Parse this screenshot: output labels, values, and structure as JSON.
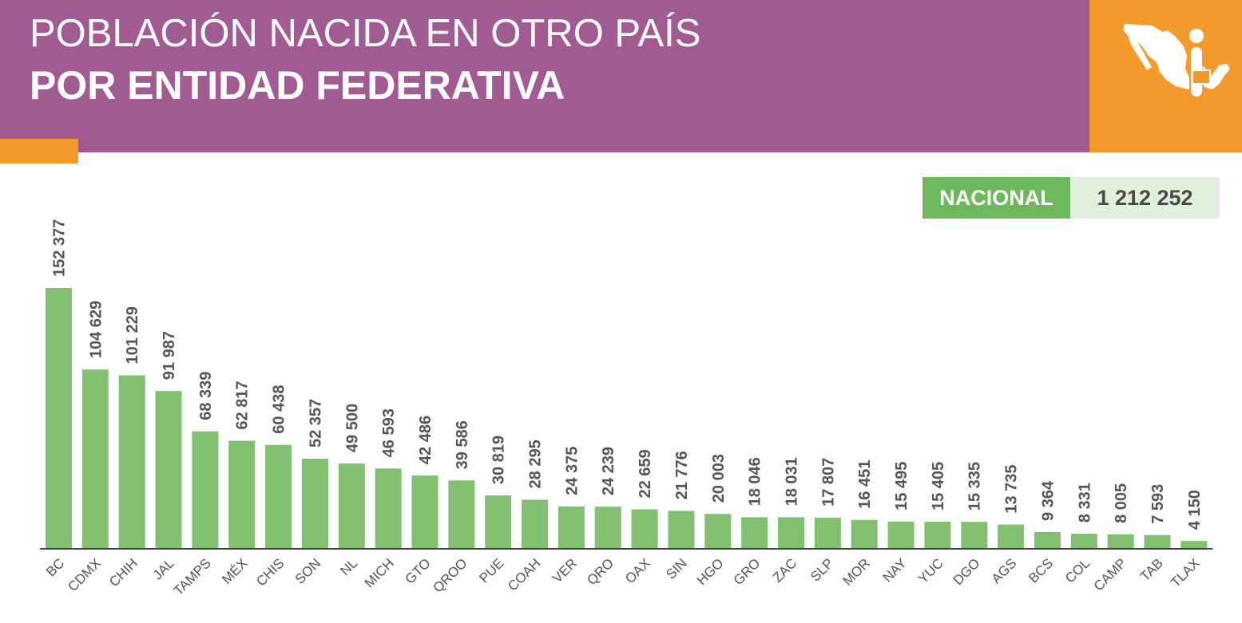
{
  "header": {
    "title_line1": "POBLACIÓN NACIDA EN OTRO PAÍS",
    "title_line2": "POR ENTIDAD FEDERATIVA",
    "logo_icon": "mexico-map-traveler-icon"
  },
  "nacional": {
    "label": "NACIONAL",
    "value": "1 212 252"
  },
  "colors": {
    "header_bg": "#a25a93",
    "accent_orange": "#f39a2b",
    "bar_green": "#80c070",
    "badge_green": "#6db85c",
    "badge_light": "#e2efdc",
    "label_gray": "#555555"
  },
  "chart_data": {
    "type": "bar",
    "title": "POBLACIÓN NACIDA EN OTRO PAÍS POR ENTIDAD FEDERATIVA",
    "xlabel": "",
    "ylabel": "",
    "ylim": [
      0,
      152377
    ],
    "grid": false,
    "legend": "none",
    "categories": [
      "BC",
      "CDMX",
      "CHIH",
      "JAL",
      "TAMPS",
      "MÉX",
      "CHIS",
      "SON",
      "NL",
      "MICH",
      "GTO",
      "QROO",
      "PUE",
      "COAH",
      "VER",
      "QRO",
      "OAX",
      "SIN",
      "HGO",
      "GRO",
      "ZAC",
      "SLP",
      "MOR",
      "NAY",
      "YUC",
      "DGO",
      "AGS",
      "BCS",
      "COL",
      "CAMP",
      "TAB",
      "TLAX"
    ],
    "values": [
      152377,
      104629,
      101229,
      91987,
      68339,
      62817,
      60438,
      52357,
      49500,
      46593,
      42486,
      39586,
      30819,
      28295,
      24375,
      24239,
      22659,
      21776,
      20003,
      18046,
      18031,
      17807,
      16451,
      15495,
      15405,
      15335,
      13735,
      9364,
      8331,
      8005,
      7593,
      4150
    ],
    "data_labels": [
      "152 377",
      "104 629",
      "101 229",
      "91 987",
      "68 339",
      "62 817",
      "60 438",
      "52 357",
      "49 500",
      "46 593",
      "42 486",
      "39 586",
      "30 819",
      "28 295",
      "24 375",
      "24 239",
      "22 659",
      "21 776",
      "20 003",
      "18 046",
      "18 031",
      "17 807",
      "16 451",
      "15 495",
      "15 405",
      "15 335",
      "13 735",
      "9 364",
      "8 331",
      "8 005",
      "7 593",
      "4 150"
    ]
  }
}
